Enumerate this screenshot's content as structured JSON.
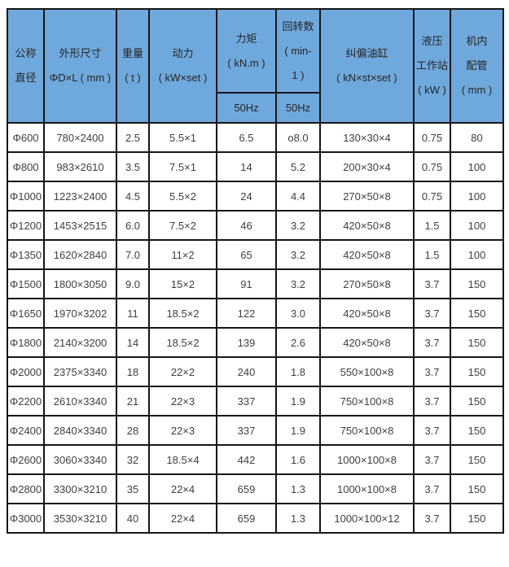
{
  "style": {
    "header_bg": "#6FA8DC",
    "border_color": "#161616",
    "header_text_color": "#262626",
    "cell_text_color": "#404040",
    "page_bg": "#FFFFFF"
  },
  "table": {
    "header": {
      "columns": [
        {
          "id": "nominal-diameter",
          "lines": [
            "公称",
            "直径"
          ]
        },
        {
          "id": "overall-dimensions",
          "lines": [
            "外形尺寸",
            "ΦD×L ( mm )"
          ]
        },
        {
          "id": "weight",
          "lines": [
            "重量",
            "( t )"
          ]
        },
        {
          "id": "power",
          "lines": [
            "动力",
            "( kW×set )"
          ]
        },
        {
          "id": "torque",
          "lines": [
            "力矩",
            "( kN.m )"
          ]
        },
        {
          "id": "rotation-speed",
          "lines": [
            "回转数",
            "( min-",
            "1 )"
          ]
        },
        {
          "id": "correction-cylinder",
          "lines": [
            "纠偏油缸",
            "( kN×st×set )"
          ]
        },
        {
          "id": "hydraulic-station",
          "lines": [
            "液压",
            "工作站",
            "( kW )"
          ]
        },
        {
          "id": "internal-piping",
          "lines": [
            "机内",
            "配管",
            "( mm )"
          ]
        }
      ],
      "subheader": [
        "50Hz",
        "50Hz"
      ]
    },
    "rows": [
      [
        "Φ600",
        "780×2400",
        "2.5",
        "5.5×1",
        "6.5",
        "o8.0",
        "130×30×4",
        "0.75",
        "80"
      ],
      [
        "Φ800",
        "983×2610",
        "3.5",
        "7.5×1",
        "14",
        "5.2",
        "200×30×4",
        "0.75",
        "100"
      ],
      [
        "Φ1000",
        "1223×2400",
        "4.5",
        "5.5×2",
        "24",
        "4.4",
        "270×50×8",
        "0.75",
        "100"
      ],
      [
        "Φ1200",
        "1453×2515",
        "6.0",
        "7.5×2",
        "46",
        "3.2",
        "420×50×8",
        "1.5",
        "100"
      ],
      [
        "Φ1350",
        "1620×2840",
        "7.0",
        "11×2",
        "65",
        "3.2",
        "420×50×8",
        "1.5",
        "100"
      ],
      [
        "Φ1500",
        "1800×3050",
        "9.0",
        "15×2",
        "91",
        "3.2",
        "270×50×8",
        "3.7",
        "150"
      ],
      [
        "Φ1650",
        "1970×3202",
        "11",
        "18.5×2",
        "122",
        "3.0",
        "420×50×8",
        "3.7",
        "150"
      ],
      [
        "Φ1800",
        "2140×3200",
        "14",
        "18.5×2",
        "139",
        "2.6",
        "420×50×8",
        "3.7",
        "150"
      ],
      [
        "Φ2000",
        "2375×3340",
        "18",
        "22×2",
        "240",
        "1.8",
        "550×100×8",
        "3.7",
        "150"
      ],
      [
        "Φ2200",
        "2610×3340",
        "21",
        "22×3",
        "337",
        "1.9",
        "750×100×8",
        "3.7",
        "150"
      ],
      [
        "Φ2400",
        "2840×3340",
        "28",
        "22×3",
        "337",
        "1.9",
        "750×100×8",
        "3.7",
        "150"
      ],
      [
        "Φ2600",
        "3060×3340",
        "32",
        "18.5×4",
        "442",
        "1.6",
        "1000×100×8",
        "3.7",
        "150"
      ],
      [
        "Φ2800",
        "3300×3210",
        "35",
        "22×4",
        "659",
        "1.3",
        "1000×100×8",
        "3.7",
        "150"
      ],
      [
        "Φ3000",
        "3530×3210",
        "40",
        "22×4",
        "659",
        "1.3",
        "1000×100×12",
        "3.7",
        "150"
      ]
    ]
  }
}
